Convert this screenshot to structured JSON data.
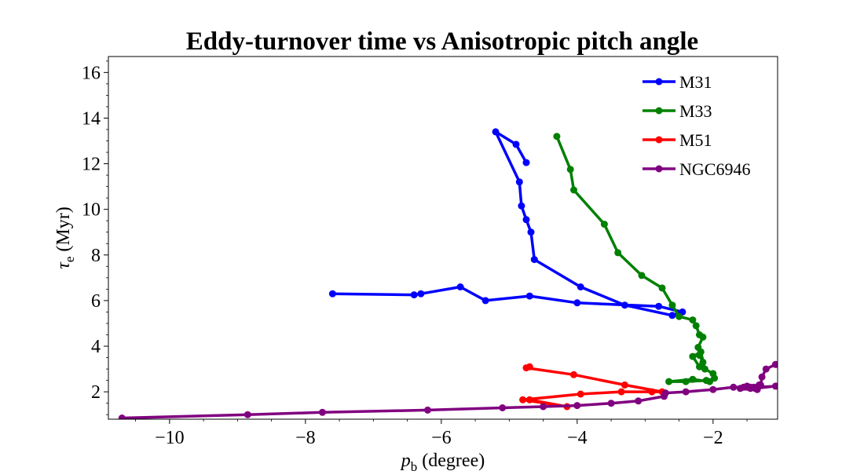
{
  "chart_data": {
    "type": "line",
    "title": "Eddy-turnover time vs Anisotropic pitch angle",
    "xlabel_main": "p",
    "xlabel_sub": "b",
    "xlabel_rest": " (degree)",
    "ylabel_main": "τ",
    "ylabel_sub": "e",
    "ylabel_rest": " (Myr)",
    "xlim": [
      -10.9,
      -1.05
    ],
    "ylim": [
      0.8,
      16.7
    ],
    "xticks": [
      -10,
      -8,
      -6,
      -4,
      -2
    ],
    "xtick_labels": [
      "−10",
      "−8",
      "−6",
      "−4",
      "−2"
    ],
    "yticks": [
      2,
      4,
      6,
      8,
      10,
      12,
      14,
      16
    ],
    "ytick_labels": [
      "2",
      "4",
      "6",
      "8",
      "10",
      "12",
      "14",
      "16"
    ],
    "grid": false,
    "legend_position": "top-right",
    "series": [
      {
        "name": "M31",
        "color": "#0000ff",
        "x": [
          -4.75,
          -4.9,
          -5.2,
          -4.85,
          -4.82,
          -4.75,
          -4.68,
          -4.63,
          -3.95,
          -3.3,
          -2.6,
          -2.45,
          -2.8,
          -4.0,
          -4.7,
          -5.35,
          -5.72,
          -6.3,
          -6.4,
          -7.6
        ],
        "y": [
          12.05,
          12.85,
          13.4,
          11.2,
          10.15,
          9.55,
          9.0,
          7.8,
          6.6,
          5.8,
          5.35,
          5.5,
          5.75,
          5.9,
          6.2,
          6.0,
          6.6,
          6.3,
          6.25,
          6.3
        ]
      },
      {
        "name": "M33",
        "color": "#008000",
        "x": [
          -4.3,
          -4.1,
          -4.05,
          -3.6,
          -3.4,
          -3.05,
          -2.75,
          -2.6,
          -2.5,
          -2.3,
          -2.25,
          -2.2,
          -2.15,
          -2.22,
          -2.2,
          -2.15,
          -2.2,
          -2.3,
          -2.18,
          -2.12,
          -2.0,
          -1.98,
          -2.05,
          -2.3,
          -2.65,
          -2.4,
          -2.1
        ],
        "y": [
          13.2,
          11.75,
          10.85,
          9.35,
          8.1,
          7.1,
          6.55,
          5.8,
          5.3,
          5.15,
          4.9,
          4.5,
          4.4,
          3.95,
          3.6,
          3.3,
          3.1,
          3.55,
          3.75,
          3.0,
          2.8,
          2.6,
          2.45,
          2.55,
          2.45,
          2.45,
          2.5
        ]
      },
      {
        "name": "M51",
        "color": "#ff0000",
        "x": [
          -4.7,
          -4.75,
          -4.05,
          -3.3,
          -2.75,
          -2.9,
          -3.35,
          -3.95,
          -4.8,
          -4.15,
          -4.7
        ],
        "y": [
          3.1,
          3.05,
          2.75,
          2.3,
          2.0,
          2.0,
          2.0,
          1.9,
          1.65,
          1.35,
          1.65
        ]
      },
      {
        "name": "NGC6946",
        "color": "#800080",
        "x": [
          -1.05,
          -1.08,
          -1.22,
          -1.28,
          -1.3,
          -1.35,
          -1.32,
          -1.5,
          -1.45,
          -1.5,
          -1.35,
          -1.6,
          -1.55,
          -1.45,
          -1.4,
          -1.38,
          -1.08,
          -1.05,
          -1.35,
          -1.7,
          -2.0,
          -2.4,
          -2.7,
          -2.72,
          -3.1,
          -3.5,
          -4.0,
          -4.5,
          -5.1,
          -6.2,
          -7.75,
          -8.85,
          -10.7
        ],
        "y": [
          3.2,
          3.2,
          3.0,
          2.65,
          2.3,
          2.2,
          2.3,
          2.2,
          2.15,
          2.25,
          2.1,
          2.15,
          2.2,
          2.2,
          2.2,
          2.15,
          2.25,
          2.25,
          2.2,
          2.2,
          2.1,
          2.0,
          1.95,
          1.8,
          1.6,
          1.5,
          1.4,
          1.35,
          1.3,
          1.2,
          1.1,
          1.0,
          0.85
        ]
      }
    ]
  }
}
